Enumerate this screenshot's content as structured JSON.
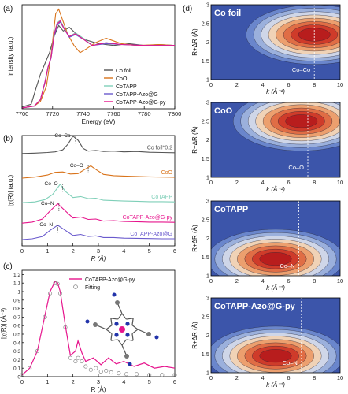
{
  "panels": {
    "a": "(a)",
    "b": "(b)",
    "c": "(c)",
    "d": "(d)"
  },
  "colors": {
    "co_foil": "#555555",
    "coo": "#d9731a",
    "cotapp": "#7fcfb8",
    "azo_g": "#6a5acd",
    "azo_g_py": "#e6148c",
    "fit": "#888888"
  },
  "chart_data": [
    {
      "id": "a",
      "type": "line",
      "xlabel": "Energy (eV)",
      "ylabel": "Intensity (a.u.)",
      "xlim": [
        7700,
        7800
      ],
      "xticks": [
        7700,
        7720,
        7740,
        7760,
        7780,
        7800
      ],
      "legend_position": "right",
      "series": [
        {
          "name": "Co foil",
          "color": "#555555",
          "x": [
            7700,
            7706,
            7709,
            7712,
            7715,
            7718,
            7721,
            7724,
            7727,
            7731,
            7736,
            7742,
            7750,
            7760,
            7770,
            7780,
            7790,
            7800
          ],
          "y": [
            0.02,
            0.05,
            0.22,
            0.38,
            0.5,
            0.62,
            0.8,
            0.92,
            0.86,
            0.9,
            0.82,
            0.76,
            0.72,
            0.7,
            0.72,
            0.7,
            0.71,
            0.7
          ]
        },
        {
          "name": "CoO",
          "color": "#d9731a",
          "x": [
            7700,
            7708,
            7712,
            7716,
            7719,
            7722,
            7724,
            7727,
            7730,
            7734,
            7738,
            7742,
            7748,
            7755,
            7765,
            7775,
            7790,
            7800
          ],
          "y": [
            0.01,
            0.03,
            0.08,
            0.25,
            0.6,
            1.05,
            1.1,
            0.96,
            0.82,
            0.7,
            0.62,
            0.66,
            0.73,
            0.78,
            0.72,
            0.7,
            0.71,
            0.7
          ]
        },
        {
          "name": "CoTAPP",
          "color": "#7fcfb8",
          "x": [
            7700,
            7708,
            7712,
            7715,
            7717,
            7719,
            7721,
            7723,
            7725,
            7728,
            7731,
            7735,
            7740,
            7746,
            7755,
            7765,
            7780,
            7800
          ],
          "y": [
            0.01,
            0.03,
            0.1,
            0.28,
            0.45,
            0.58,
            0.84,
            0.95,
            0.98,
            0.88,
            0.8,
            0.84,
            0.78,
            0.7,
            0.73,
            0.71,
            0.7,
            0.7
          ]
        },
        {
          "name": "CoTAPP-Azo@G",
          "color": "#6a5acd",
          "x": [
            7700,
            7708,
            7712,
            7715,
            7717,
            7719,
            7721,
            7723,
            7725,
            7728,
            7731,
            7735,
            7740,
            7746,
            7755,
            7765,
            7780,
            7800
          ],
          "y": [
            0.01,
            0.03,
            0.1,
            0.3,
            0.46,
            0.56,
            0.8,
            0.92,
            0.96,
            0.87,
            0.79,
            0.82,
            0.77,
            0.7,
            0.72,
            0.71,
            0.7,
            0.7
          ]
        },
        {
          "name": "CoTAPP-Azo@G-py",
          "color": "#e6148c",
          "x": [
            7700,
            7708,
            7712,
            7715,
            7717,
            7719,
            7721,
            7723,
            7725,
            7728,
            7731,
            7735,
            7740,
            7746,
            7755,
            7765,
            7780,
            7800
          ],
          "y": [
            0.01,
            0.03,
            0.1,
            0.29,
            0.46,
            0.57,
            0.82,
            0.94,
            0.97,
            0.87,
            0.8,
            0.83,
            0.77,
            0.7,
            0.73,
            0.71,
            0.7,
            0.7
          ]
        }
      ]
    },
    {
      "id": "b",
      "type": "line",
      "xlabel": "R (Å)",
      "ylabel": "|χ(R)| (a.u.)",
      "xlim": [
        0,
        6
      ],
      "xticks": [
        0,
        1,
        2,
        3,
        4,
        5,
        6
      ],
      "series": [
        {
          "name": "Co foil*0.2",
          "color": "#555555",
          "offset": 4.2,
          "x": [
            0,
            0.5,
            1.0,
            1.3,
            1.6,
            1.8,
            2.0,
            2.2,
            2.4,
            2.6,
            2.9,
            3.2,
            3.6,
            4.0,
            4.5,
            5.0,
            5.5,
            6.0
          ],
          "y": [
            0,
            0.02,
            0.05,
            0.08,
            0.18,
            0.45,
            0.85,
            0.65,
            0.25,
            0.12,
            0.15,
            0.1,
            0.12,
            0.08,
            0.1,
            0.06,
            0.05,
            0.04
          ]
        },
        {
          "name": "CoO",
          "color": "#d9731a",
          "offset": 3.0,
          "x": [
            0,
            0.5,
            1.0,
            1.3,
            1.6,
            1.9,
            2.2,
            2.5,
            2.7,
            2.9,
            3.2,
            3.6,
            4.0,
            4.5,
            5.0,
            5.5,
            6.0
          ],
          "y": [
            0,
            0.05,
            0.15,
            0.28,
            0.3,
            0.2,
            0.22,
            0.45,
            0.6,
            0.42,
            0.18,
            0.12,
            0.1,
            0.08,
            0.06,
            0.05,
            0.04
          ]
        },
        {
          "name": "CoTAPP",
          "color": "#7fcfb8",
          "offset": 1.8,
          "x": [
            0,
            0.5,
            0.9,
            1.2,
            1.5,
            1.7,
            2.0,
            2.3,
            2.6,
            2.9,
            3.2,
            3.6,
            4.0,
            4.5,
            5.0,
            5.5,
            6.0
          ],
          "y": [
            0,
            0.04,
            0.15,
            0.4,
            0.9,
            0.55,
            0.25,
            0.3,
            0.2,
            0.22,
            0.12,
            0.1,
            0.08,
            0.07,
            0.05,
            0.05,
            0.04
          ]
        },
        {
          "name": "CoTAPP-Azo@G-py",
          "color": "#e6148c",
          "offset": 0.8,
          "x": [
            0,
            0.4,
            0.8,
            1.1,
            1.4,
            1.7,
            2.0,
            2.3,
            2.6,
            2.9,
            3.2,
            3.6,
            4.0,
            4.5,
            5.0,
            5.5,
            6.0
          ],
          "y": [
            0,
            0.05,
            0.2,
            0.6,
            0.95,
            0.6,
            0.25,
            0.3,
            0.18,
            0.2,
            0.1,
            0.12,
            0.08,
            0.07,
            0.05,
            0.05,
            0.04
          ]
        },
        {
          "name": "CoTAPP-Azo@G",
          "color": "#6a5acd",
          "offset": 0.0,
          "x": [
            0,
            0.4,
            0.8,
            1.1,
            1.4,
            1.7,
            2.0,
            2.3,
            2.6,
            2.9,
            3.2,
            3.6,
            4.0,
            4.5,
            5.0,
            5.5,
            6.0
          ],
          "y": [
            0,
            0.04,
            0.15,
            0.45,
            0.7,
            0.45,
            0.2,
            0.25,
            0.15,
            0.18,
            0.1,
            0.1,
            0.07,
            0.06,
            0.05,
            0.04,
            0.04
          ]
        }
      ],
      "annotations": [
        {
          "text": "Co–Co",
          "x": 2.1
        },
        {
          "text": "Co–O",
          "x": 2.6
        },
        {
          "text": "Co–O",
          "x": 1.6
        },
        {
          "text": "Co–N",
          "x": 1.45
        },
        {
          "text": "Co–N",
          "x": 1.4
        }
      ]
    },
    {
      "id": "c",
      "type": "line",
      "xlabel": "R (Å)",
      "ylabel": "|χ(R)| (Å⁻³)",
      "xlim": [
        0,
        6
      ],
      "ylim": [
        0,
        1.25
      ],
      "xticks": [
        0,
        1,
        2,
        3,
        4,
        5,
        6
      ],
      "yticks": [
        0.0,
        0.1,
        0.2,
        0.3,
        0.4,
        0.5,
        0.6,
        0.7,
        0.8,
        0.9,
        1.0,
        1.1,
        1.2
      ],
      "legend_position": "top-right",
      "series": [
        {
          "name": "CoTAPP-Azo@G-py",
          "color": "#e6148c",
          "x": [
            0,
            0.3,
            0.6,
            0.9,
            1.1,
            1.3,
            1.4,
            1.5,
            1.7,
            1.9,
            2.1,
            2.2,
            2.35,
            2.5,
            2.8,
            3.1,
            3.4,
            3.7,
            4.0,
            4.4,
            4.8,
            5.2,
            5.6,
            6.0
          ],
          "y": [
            0.02,
            0.1,
            0.3,
            0.72,
            1.0,
            1.12,
            1.1,
            1.0,
            0.6,
            0.25,
            0.3,
            0.42,
            0.28,
            0.18,
            0.22,
            0.14,
            0.22,
            0.15,
            0.18,
            0.12,
            0.16,
            0.1,
            0.12,
            0.1
          ]
        },
        {
          "name": "Fitting",
          "color": "#888888",
          "x": [
            0,
            0.3,
            0.6,
            0.9,
            1.1,
            1.3,
            1.4,
            1.5,
            1.7,
            1.9,
            2.1,
            2.2,
            2.35,
            2.5,
            2.7,
            2.9,
            3.1,
            3.3,
            3.5,
            3.8,
            4.1,
            4.5,
            5.0,
            5.5,
            6.0
          ],
          "y": [
            0.02,
            0.1,
            0.3,
            0.7,
            0.98,
            1.1,
            1.09,
            0.98,
            0.58,
            0.22,
            0.18,
            0.22,
            0.18,
            0.12,
            0.08,
            0.1,
            0.06,
            0.07,
            0.05,
            0.04,
            0.03,
            0.03,
            0.02,
            0.02,
            0.02
          ]
        }
      ]
    },
    {
      "id": "d",
      "type": "heatmap",
      "xlabel": "k (Å⁻¹)",
      "ylabel": "R+ΔR (Å)",
      "xticks": [
        0,
        2,
        4,
        6,
        8,
        10
      ],
      "maps": [
        {
          "title": "Co foil",
          "peak_label": "Co–Co",
          "ylim": [
            1.0,
            3.0
          ],
          "yticks": [
            1.0,
            1.5,
            2.0,
            2.5,
            3.0
          ],
          "peak_k": 8.0,
          "peak_r": 2.2,
          "dashed_k": 8.0
        },
        {
          "title": "CoO",
          "peak_label": "Co–O",
          "ylim": [
            1.0,
            3.0
          ],
          "yticks": [
            1.0,
            1.5,
            2.0,
            2.5,
            3.0
          ],
          "peak_k": 7.0,
          "peak_r": 2.5,
          "dashed_k": 7.5
        },
        {
          "title": "CoTAPP",
          "peak_label": "Co–N",
          "ylim": [
            1.0,
            3.0
          ],
          "yticks": [
            1.0,
            1.5,
            2.0,
            2.5,
            3.0
          ],
          "peak_k": 5.0,
          "peak_r": 1.45,
          "dashed_k": 6.8
        },
        {
          "title": "CoTAPP-Azo@G-py",
          "peak_label": "Co–N",
          "ylim": [
            1.0,
            3.0
          ],
          "yticks": [
            1.0,
            1.5,
            2.0,
            2.5,
            3.0
          ],
          "peak_k": 5.0,
          "peak_r": 1.45,
          "dashed_k": 7.0
        }
      ]
    }
  ]
}
